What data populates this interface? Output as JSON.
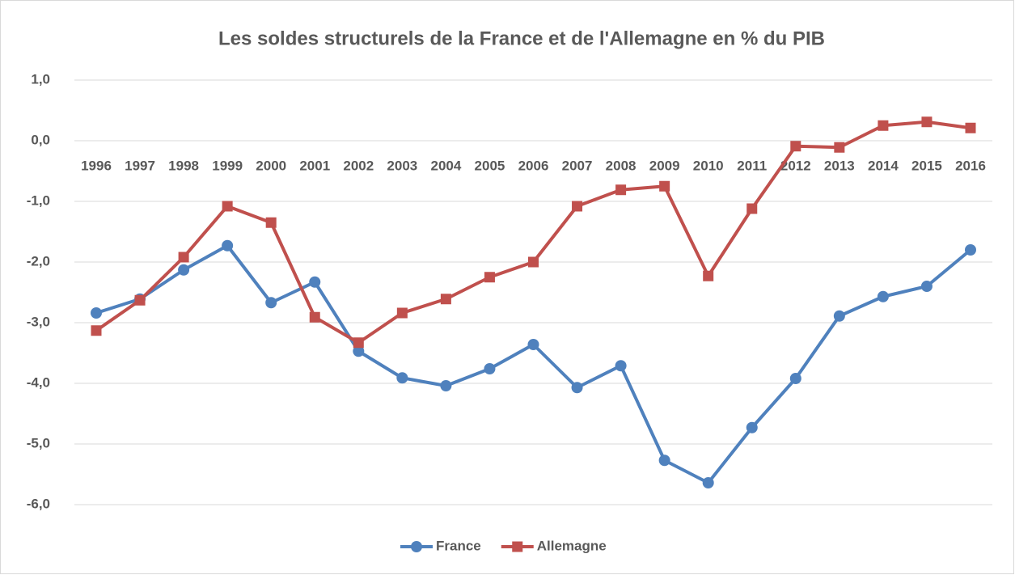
{
  "chart_data": {
    "type": "line",
    "title": "Les soldes structurels de la France et de l'Allemagne en % du PIB",
    "categories": [
      "1996",
      "1997",
      "1998",
      "1999",
      "2000",
      "2001",
      "2002",
      "2003",
      "2004",
      "2005",
      "2006",
      "2007",
      "2008",
      "2009",
      "2010",
      "2011",
      "2012",
      "2013",
      "2014",
      "2015",
      "2016"
    ],
    "series": [
      {
        "name": "France",
        "color": "#4f81bd",
        "marker": "circle",
        "values": [
          -2.84,
          -2.61,
          -2.13,
          -1.73,
          -2.67,
          -2.33,
          -3.47,
          -3.91,
          -4.04,
          -3.76,
          -3.36,
          -4.07,
          -3.71,
          -5.27,
          -5.64,
          -4.73,
          -3.92,
          -2.89,
          -2.57,
          -2.4,
          -1.8
        ]
      },
      {
        "name": "Allemagne",
        "color": "#c0504d",
        "marker": "square",
        "values": [
          -3.13,
          -2.63,
          -1.92,
          -1.08,
          -1.35,
          -2.91,
          -3.33,
          -2.84,
          -2.61,
          -2.25,
          -2.0,
          -1.08,
          -0.81,
          -0.75,
          -2.23,
          -1.12,
          -0.09,
          -0.11,
          0.25,
          0.31,
          0.21
        ]
      }
    ],
    "ylim": [
      -6,
      1
    ],
    "yticks": [
      {
        "value": 1,
        "label": "1,0"
      },
      {
        "value": 0,
        "label": "0,0"
      },
      {
        "value": -1,
        "label": "-1,0"
      },
      {
        "value": -2,
        "label": "-2,0"
      },
      {
        "value": -3,
        "label": "-3,0"
      },
      {
        "value": -4,
        "label": "-4,0"
      },
      {
        "value": -5,
        "label": "-5,0"
      },
      {
        "value": -6,
        "label": "-6,0"
      }
    ],
    "grid": true,
    "legend": "bottom"
  }
}
